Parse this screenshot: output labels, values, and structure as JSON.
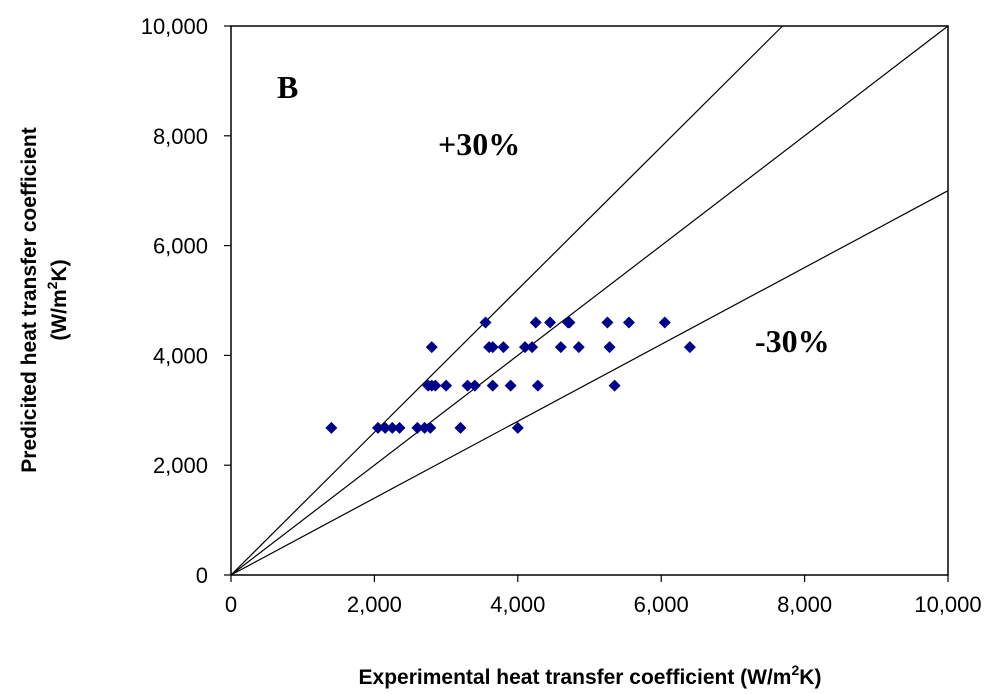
{
  "chart_data": {
    "type": "scatter",
    "title": "",
    "panel_label": "B",
    "xlabel_prefix": "Experimental heat transfer coefficient (W/m",
    "xlabel_sup": "2",
    "xlabel_suffix": "K)",
    "ylabel_line1": "Predicited heat transfer coefficient",
    "ylabel_prefix": "(W/m",
    "ylabel_sup": "2",
    "ylabel_suffix": "K)",
    "xlim": [
      0,
      10000
    ],
    "ylim": [
      0,
      10000
    ],
    "x_ticks": [
      0,
      2000,
      4000,
      6000,
      8000,
      10000
    ],
    "x_tick_labels": [
      "0",
      "2,000",
      "4,000",
      "6,000",
      "8,000",
      "10,000"
    ],
    "y_ticks": [
      0,
      2000,
      4000,
      6000,
      8000,
      10000
    ],
    "y_tick_labels": [
      "0",
      "2,000",
      "4,000",
      "6,000",
      "8,000",
      "10,000"
    ],
    "grid": false,
    "legend": "none",
    "marker_color": "#00008B",
    "line_color": "#000000",
    "reference_lines": [
      {
        "slope": 1.3,
        "label": "+30%"
      },
      {
        "slope": 1.0,
        "label": ""
      },
      {
        "slope": 0.7,
        "label": "-30%"
      }
    ],
    "points": [
      {
        "x": 1400,
        "y": 2680
      },
      {
        "x": 2050,
        "y": 2680
      },
      {
        "x": 2150,
        "y": 2680
      },
      {
        "x": 2250,
        "y": 2680
      },
      {
        "x": 2350,
        "y": 2680
      },
      {
        "x": 2600,
        "y": 2680
      },
      {
        "x": 2700,
        "y": 2680
      },
      {
        "x": 2780,
        "y": 2680
      },
      {
        "x": 2750,
        "y": 3450
      },
      {
        "x": 2800,
        "y": 3450
      },
      {
        "x": 2850,
        "y": 3450
      },
      {
        "x": 2800,
        "y": 4150
      },
      {
        "x": 3000,
        "y": 3450
      },
      {
        "x": 3200,
        "y": 2680
      },
      {
        "x": 3300,
        "y": 3450
      },
      {
        "x": 3400,
        "y": 3450
      },
      {
        "x": 3550,
        "y": 4600
      },
      {
        "x": 3600,
        "y": 4150
      },
      {
        "x": 3650,
        "y": 4150
      },
      {
        "x": 3650,
        "y": 3450
      },
      {
        "x": 3800,
        "y": 4150
      },
      {
        "x": 3900,
        "y": 3450
      },
      {
        "x": 4000,
        "y": 2680
      },
      {
        "x": 4100,
        "y": 4150
      },
      {
        "x": 4200,
        "y": 4150
      },
      {
        "x": 4250,
        "y": 4600
      },
      {
        "x": 4280,
        "y": 3450
      },
      {
        "x": 4450,
        "y": 4600
      },
      {
        "x": 4600,
        "y": 4150
      },
      {
        "x": 4700,
        "y": 4600
      },
      {
        "x": 4720,
        "y": 4600
      },
      {
        "x": 4850,
        "y": 4150
      },
      {
        "x": 5250,
        "y": 4600
      },
      {
        "x": 5280,
        "y": 4150
      },
      {
        "x": 5350,
        "y": 3450
      },
      {
        "x": 5550,
        "y": 4600
      },
      {
        "x": 6050,
        "y": 4600
      },
      {
        "x": 6400,
        "y": 4150
      }
    ]
  }
}
